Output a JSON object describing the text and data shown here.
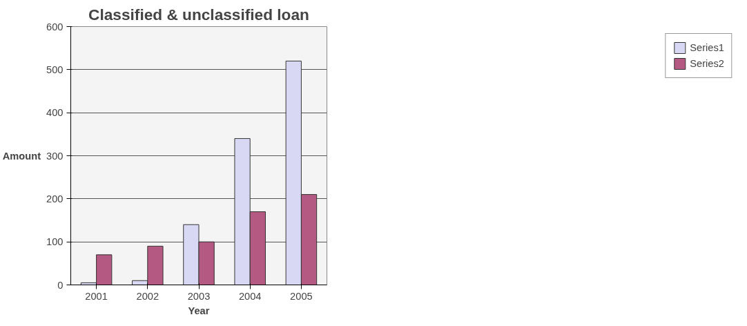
{
  "chart_data": {
    "type": "bar",
    "title": "Classified & unclassified loan",
    "xlabel": "Year",
    "ylabel": "Amount",
    "categories": [
      "2001",
      "2002",
      "2003",
      "2004",
      "2005"
    ],
    "series": [
      {
        "name": "Series1",
        "color": "#d8d8f4",
        "values": [
          5,
          10,
          140,
          340,
          520
        ]
      },
      {
        "name": "Series2",
        "color": "#b45a82",
        "values": [
          70,
          90,
          100,
          170,
          210
        ]
      }
    ],
    "ylim": [
      0,
      600
    ],
    "yticks": [
      0,
      100,
      200,
      300,
      400,
      500,
      600
    ],
    "grid": "y",
    "legend": "right"
  }
}
